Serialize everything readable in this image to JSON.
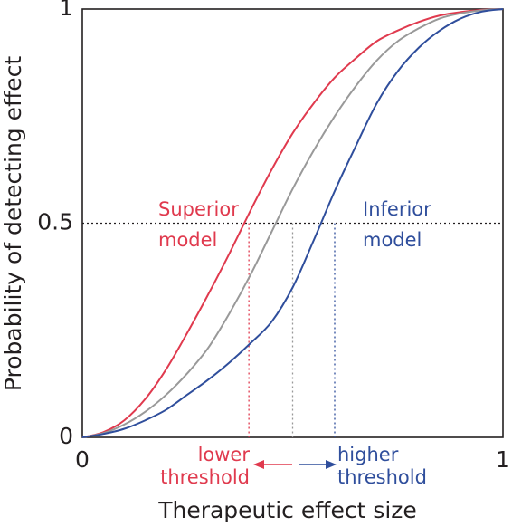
{
  "chart_data": {
    "type": "line",
    "title": "",
    "xlabel": "Therapeutic effect size",
    "ylabel": "Probability of detecting effect",
    "xlim": [
      0,
      1
    ],
    "ylim": [
      0,
      1
    ],
    "x_ticks": [
      {
        "value": 0,
        "label": "0"
      },
      {
        "value": 1,
        "label": "1"
      }
    ],
    "y_ticks": [
      {
        "value": 0,
        "label": "0"
      },
      {
        "value": 0.5,
        "label": "0.5"
      },
      {
        "value": 1,
        "label": "1"
      }
    ],
    "grid": false,
    "series": [
      {
        "name": "Superior model",
        "color": "#e03a4e",
        "x": [
          0,
          0.05,
          0.1,
          0.15,
          0.2,
          0.25,
          0.3,
          0.35,
          0.4,
          0.45,
          0.5,
          0.55,
          0.6,
          0.65,
          0.7,
          0.75,
          0.8,
          0.85,
          0.9,
          0.95,
          1
        ],
        "y": [
          0,
          0.012,
          0.04,
          0.09,
          0.16,
          0.245,
          0.335,
          0.43,
          0.53,
          0.625,
          0.71,
          0.78,
          0.84,
          0.885,
          0.925,
          0.95,
          0.97,
          0.985,
          0.993,
          0.998,
          1
        ]
      },
      {
        "name": "",
        "color": "#999999",
        "x": [
          0,
          0.05,
          0.1,
          0.15,
          0.2,
          0.25,
          0.3,
          0.35,
          0.4,
          0.45,
          0.5,
          0.55,
          0.6,
          0.65,
          0.7,
          0.75,
          0.8,
          0.85,
          0.9,
          0.95,
          1
        ],
        "y": [
          0,
          0.01,
          0.03,
          0.06,
          0.1,
          0.15,
          0.21,
          0.29,
          0.38,
          0.48,
          0.58,
          0.67,
          0.75,
          0.82,
          0.88,
          0.925,
          0.955,
          0.978,
          0.99,
          0.997,
          1
        ]
      },
      {
        "name": "Inferior model",
        "color": "#2f4e9c",
        "x": [
          0,
          0.05,
          0.1,
          0.15,
          0.2,
          0.25,
          0.3,
          0.35,
          0.4,
          0.45,
          0.5,
          0.55,
          0.6,
          0.65,
          0.7,
          0.75,
          0.8,
          0.85,
          0.9,
          0.95,
          1
        ],
        "y": [
          0,
          0.008,
          0.02,
          0.04,
          0.065,
          0.1,
          0.135,
          0.175,
          0.22,
          0.27,
          0.35,
          0.46,
          0.575,
          0.68,
          0.78,
          0.855,
          0.91,
          0.95,
          0.978,
          0.994,
          1
        ]
      }
    ],
    "reference_line": {
      "y": 0.5,
      "style": "dotted",
      "color": "#231f20"
    },
    "threshold_lines": [
      {
        "x": 0.396,
        "color": "#e03a4e"
      },
      {
        "x": 0.5,
        "color": "#999999"
      },
      {
        "x": 0.6,
        "color": "#2f4e9c"
      }
    ],
    "annotations": {
      "superior_model": {
        "lines": [
          "Superior",
          "model"
        ],
        "color": "#e03a4e"
      },
      "inferior_model": {
        "lines": [
          "Inferior",
          "model"
        ],
        "color": "#2f4e9c"
      },
      "lower_threshold": {
        "lines": [
          "lower",
          "threshold"
        ],
        "color": "#e03a4e"
      },
      "higher_threshold": {
        "lines": [
          "higher",
          "threshold"
        ],
        "color": "#2f4e9c"
      }
    }
  }
}
